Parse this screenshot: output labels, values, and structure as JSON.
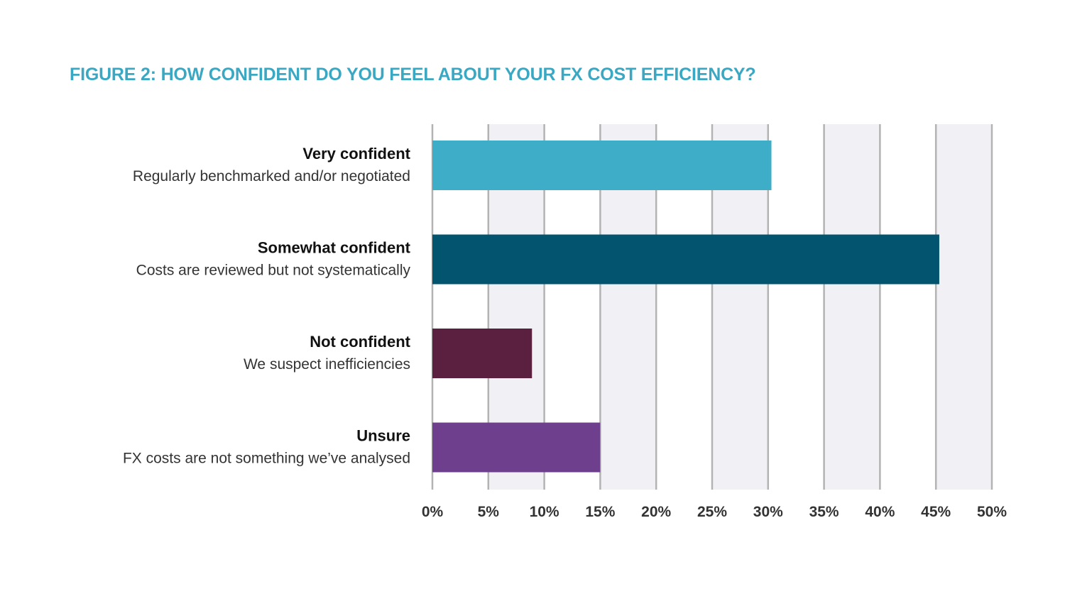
{
  "chart_data": {
    "type": "bar",
    "orientation": "horizontal",
    "title": "FIGURE 2: HOW CONFIDENT DO YOU FEEL ABOUT YOUR FX COST EFFICIENCY?",
    "categories": [
      {
        "title": "Very confident",
        "subtitle": "Regularly benchmarked and/or negotiated"
      },
      {
        "title": "Somewhat confident",
        "subtitle": "Costs are reviewed but not systematically"
      },
      {
        "title": "Not confident",
        "subtitle": "We suspect inefficiencies"
      },
      {
        "title": "Unsure",
        "subtitle": "FX costs are not something we’ve analysed"
      }
    ],
    "values": [
      30.3,
      45.3,
      8.9,
      15.0
    ],
    "bar_colors": [
      "#3eadc7",
      "#02546f",
      "#5b1f40",
      "#6d3f8d"
    ],
    "xlim": [
      0,
      50
    ],
    "x_ticks": [
      "0%",
      "5%",
      "10%",
      "15%",
      "20%",
      "25%",
      "30%",
      "35%",
      "40%",
      "45%",
      "50%"
    ],
    "grid": true,
    "legend": "none",
    "colors": {
      "title": "#3aa8c2",
      "band": "#f1f1f5",
      "gridline": "#b3b3b3"
    }
  }
}
